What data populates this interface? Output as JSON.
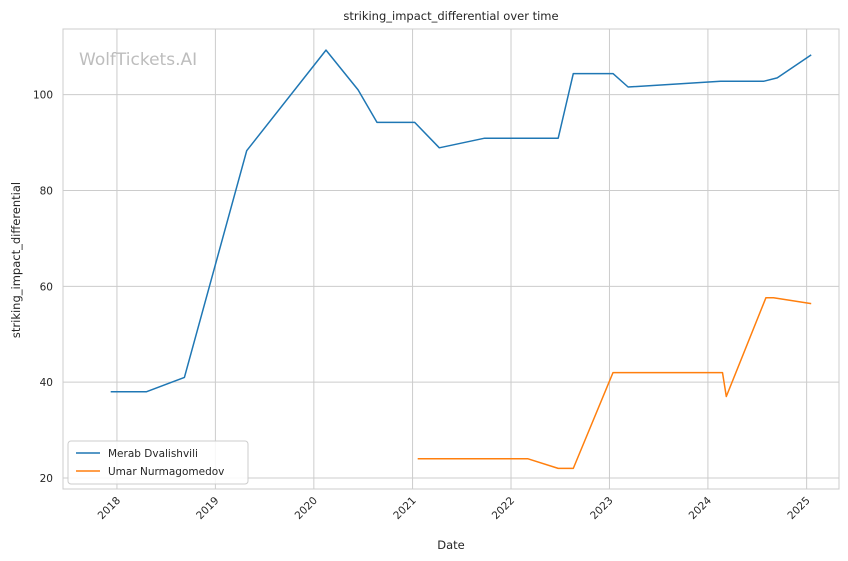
{
  "chart_data": {
    "type": "line",
    "title": "striking_impact_differential over time",
    "xlabel": "Date",
    "ylabel": "striking_impact_differential",
    "watermark": "WolfTickets.AI",
    "xlim": [
      "2017-06-15",
      "2025-05-01"
    ],
    "ylim": [
      17.7,
      113.7
    ],
    "x_ticks": [
      {
        "date": "2018-01-01",
        "label": "2018"
      },
      {
        "date": "2019-01-01",
        "label": "2019"
      },
      {
        "date": "2020-01-01",
        "label": "2020"
      },
      {
        "date": "2021-01-01",
        "label": "2021"
      },
      {
        "date": "2022-01-01",
        "label": "2022"
      },
      {
        "date": "2023-01-01",
        "label": "2023"
      },
      {
        "date": "2024-01-01",
        "label": "2024"
      },
      {
        "date": "2025-01-01",
        "label": "2025"
      }
    ],
    "y_ticks": [
      20,
      40,
      60,
      80,
      100
    ],
    "grid": true,
    "legend_position": "lower-left",
    "series": [
      {
        "name": "Merab Dvalishvili",
        "color": "#1f77b4",
        "points": [
          {
            "x": "2017-12-09",
            "y": 38.0
          },
          {
            "x": "2018-04-21",
            "y": 38.0
          },
          {
            "x": "2018-09-08",
            "y": 41.0
          },
          {
            "x": "2019-04-27",
            "y": 88.3
          },
          {
            "x": "2020-02-15",
            "y": 109.3
          },
          {
            "x": "2020-06-13",
            "y": 101.0
          },
          {
            "x": "2020-08-22",
            "y": 94.2
          },
          {
            "x": "2021-01-09",
            "y": 94.2
          },
          {
            "x": "2021-04-10",
            "y": 88.9
          },
          {
            "x": "2021-09-25",
            "y": 90.9
          },
          {
            "x": "2022-06-25",
            "y": 90.9
          },
          {
            "x": "2022-08-20",
            "y": 104.4
          },
          {
            "x": "2023-01-14",
            "y": 104.4
          },
          {
            "x": "2023-03-11",
            "y": 101.6
          },
          {
            "x": "2024-02-17",
            "y": 102.8
          },
          {
            "x": "2024-07-27",
            "y": 102.8
          },
          {
            "x": "2024-09-14",
            "y": 103.5
          },
          {
            "x": "2025-01-18",
            "y": 108.3
          }
        ]
      },
      {
        "name": "Umar Nurmagomedov",
        "color": "#ff7f0e",
        "points": [
          {
            "x": "2021-01-20",
            "y": 24.0
          },
          {
            "x": "2022-03-05",
            "y": 24.0
          },
          {
            "x": "2022-06-25",
            "y": 22.0
          },
          {
            "x": "2022-08-20",
            "y": 22.0
          },
          {
            "x": "2023-01-14",
            "y": 42.0
          },
          {
            "x": "2024-02-24",
            "y": 42.0
          },
          {
            "x": "2024-03-09",
            "y": 37.0
          },
          {
            "x": "2024-08-03",
            "y": 57.6
          },
          {
            "x": "2024-08-31",
            "y": 57.6
          },
          {
            "x": "2025-01-18",
            "y": 56.4
          }
        ]
      }
    ]
  }
}
